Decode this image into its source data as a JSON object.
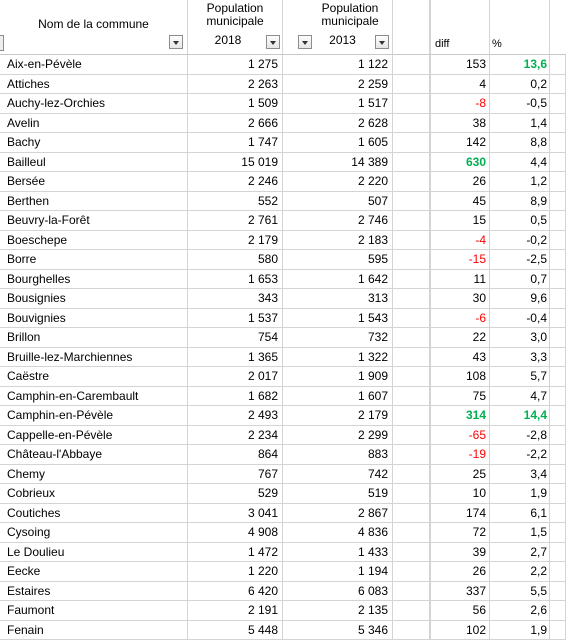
{
  "headers": {
    "name": "Nom de la commune",
    "pop2018_line1": "Population",
    "pop2018_line2": "municipale",
    "pop2018_line3": "2018",
    "pop2013_line1": "Population",
    "pop2013_line2": "municipale",
    "pop2013_line3": "2013",
    "diff": "diff",
    "pct": "%"
  },
  "colors": {
    "negative": "#ff0000",
    "highlight": "#00b050",
    "grid": "#d4d4d4"
  },
  "rows": [
    {
      "name": "Aix-en-Pévèle",
      "p2018": "1 275",
      "p2013": "1 122",
      "diff": "153",
      "pct": "13,6",
      "diff_style": "",
      "pct_style": "pos-hl"
    },
    {
      "name": "Attiches",
      "p2018": "2 263",
      "p2013": "2 259",
      "diff": "4",
      "pct": "0,2",
      "diff_style": "",
      "pct_style": ""
    },
    {
      "name": "Auchy-lez-Orchies",
      "p2018": "1 509",
      "p2013": "1 517",
      "diff": "-8",
      "pct": "-0,5",
      "diff_style": "neg",
      "pct_style": ""
    },
    {
      "name": "Avelin",
      "p2018": "2 666",
      "p2013": "2 628",
      "diff": "38",
      "pct": "1,4",
      "diff_style": "",
      "pct_style": ""
    },
    {
      "name": "Bachy",
      "p2018": "1 747",
      "p2013": "1 605",
      "diff": "142",
      "pct": "8,8",
      "diff_style": "",
      "pct_style": ""
    },
    {
      "name": "Bailleul",
      "p2018": "15 019",
      "p2013": "14 389",
      "diff": "630",
      "pct": "4,4",
      "diff_style": "pos-hl",
      "pct_style": ""
    },
    {
      "name": "Bersée",
      "p2018": "2 246",
      "p2013": "2 220",
      "diff": "26",
      "pct": "1,2",
      "diff_style": "",
      "pct_style": ""
    },
    {
      "name": "Berthen",
      "p2018": "552",
      "p2013": "507",
      "diff": "45",
      "pct": "8,9",
      "diff_style": "",
      "pct_style": ""
    },
    {
      "name": "Beuvry-la-Forêt",
      "p2018": "2 761",
      "p2013": "2 746",
      "diff": "15",
      "pct": "0,5",
      "diff_style": "",
      "pct_style": ""
    },
    {
      "name": "Boeschepe",
      "p2018": "2 179",
      "p2013": "2 183",
      "diff": "-4",
      "pct": "-0,2",
      "diff_style": "neg",
      "pct_style": ""
    },
    {
      "name": "Borre",
      "p2018": "580",
      "p2013": "595",
      "diff": "-15",
      "pct": "-2,5",
      "diff_style": "neg",
      "pct_style": ""
    },
    {
      "name": "Bourghelles",
      "p2018": "1 653",
      "p2013": "1 642",
      "diff": "11",
      "pct": "0,7",
      "diff_style": "",
      "pct_style": ""
    },
    {
      "name": "Bousignies",
      "p2018": "343",
      "p2013": "313",
      "diff": "30",
      "pct": "9,6",
      "diff_style": "",
      "pct_style": ""
    },
    {
      "name": "Bouvignies",
      "p2018": "1 537",
      "p2013": "1 543",
      "diff": "-6",
      "pct": "-0,4",
      "diff_style": "neg",
      "pct_style": ""
    },
    {
      "name": "Brillon",
      "p2018": "754",
      "p2013": "732",
      "diff": "22",
      "pct": "3,0",
      "diff_style": "",
      "pct_style": ""
    },
    {
      "name": "Bruille-lez-Marchiennes",
      "p2018": "1 365",
      "p2013": "1 322",
      "diff": "43",
      "pct": "3,3",
      "diff_style": "",
      "pct_style": ""
    },
    {
      "name": "Caëstre",
      "p2018": "2 017",
      "p2013": "1 909",
      "diff": "108",
      "pct": "5,7",
      "diff_style": "",
      "pct_style": ""
    },
    {
      "name": "Camphin-en-Carembault",
      "p2018": "1 682",
      "p2013": "1 607",
      "diff": "75",
      "pct": "4,7",
      "diff_style": "",
      "pct_style": ""
    },
    {
      "name": "Camphin-en-Pévèle",
      "p2018": "2 493",
      "p2013": "2 179",
      "diff": "314",
      "pct": "14,4",
      "diff_style": "pos-hl",
      "pct_style": "pos-hl"
    },
    {
      "name": "Cappelle-en-Pévèle",
      "p2018": "2 234",
      "p2013": "2 299",
      "diff": "-65",
      "pct": "-2,8",
      "diff_style": "neg",
      "pct_style": ""
    },
    {
      "name": "Château-l'Abbaye",
      "p2018": "864",
      "p2013": "883",
      "diff": "-19",
      "pct": "-2,2",
      "diff_style": "neg",
      "pct_style": ""
    },
    {
      "name": "Chemy",
      "p2018": "767",
      "p2013": "742",
      "diff": "25",
      "pct": "3,4",
      "diff_style": "",
      "pct_style": ""
    },
    {
      "name": "Cobrieux",
      "p2018": "529",
      "p2013": "519",
      "diff": "10",
      "pct": "1,9",
      "diff_style": "",
      "pct_style": ""
    },
    {
      "name": "Coutiches",
      "p2018": "3 041",
      "p2013": "2 867",
      "diff": "174",
      "pct": "6,1",
      "diff_style": "",
      "pct_style": ""
    },
    {
      "name": "Cysoing",
      "p2018": "4 908",
      "p2013": "4 836",
      "diff": "72",
      "pct": "1,5",
      "diff_style": "",
      "pct_style": ""
    },
    {
      "name": "Le Doulieu",
      "p2018": "1 472",
      "p2013": "1 433",
      "diff": "39",
      "pct": "2,7",
      "diff_style": "",
      "pct_style": ""
    },
    {
      "name": "Eecke",
      "p2018": "1 220",
      "p2013": "1 194",
      "diff": "26",
      "pct": "2,2",
      "diff_style": "",
      "pct_style": ""
    },
    {
      "name": "Estaires",
      "p2018": "6 420",
      "p2013": "6 083",
      "diff": "337",
      "pct": "5,5",
      "diff_style": "",
      "pct_style": ""
    },
    {
      "name": "Faumont",
      "p2018": "2 191",
      "p2013": "2 135",
      "diff": "56",
      "pct": "2,6",
      "diff_style": "",
      "pct_style": ""
    },
    {
      "name": "Fenain",
      "p2018": "5 448",
      "p2013": "5 346",
      "diff": "102",
      "pct": "1,9",
      "diff_style": "",
      "pct_style": ""
    }
  ]
}
